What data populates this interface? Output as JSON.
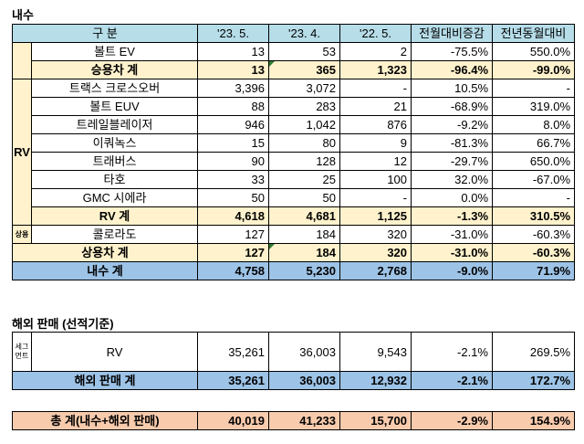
{
  "domestic": {
    "title": "내수",
    "headers": [
      "구  분",
      "'23. 5.",
      "'23. 4.",
      "'22. 5.",
      "전월대비증감",
      "전년동월대비"
    ],
    "bolt_ev": {
      "label": "볼트 EV",
      "v": [
        "13",
        "53",
        "2",
        "-75.5%",
        "550.0%"
      ]
    },
    "passenger_total": {
      "label": "승용차 계",
      "v": [
        "13",
        "365",
        "1,323",
        "-96.4%",
        "-99.0%"
      ]
    },
    "rv_group_label": "RV",
    "rv_rows": [
      {
        "label": "트랙스 크로스오버",
        "v": [
          "3,396",
          "3,072",
          "-",
          "10.5%",
          "-"
        ]
      },
      {
        "label": "볼트 EUV",
        "v": [
          "88",
          "283",
          "21",
          "-68.9%",
          "319.0%"
        ]
      },
      {
        "label": "트레일블레이저",
        "v": [
          "946",
          "1,042",
          "876",
          "-9.2%",
          "8.0%"
        ]
      },
      {
        "label": "이쿼녹스",
        "v": [
          "15",
          "80",
          "9",
          "-81.3%",
          "66.7%"
        ]
      },
      {
        "label": "트래버스",
        "v": [
          "90",
          "128",
          "12",
          "-29.7%",
          "650.0%"
        ]
      },
      {
        "label": "타호",
        "v": [
          "33",
          "25",
          "100",
          "32.0%",
          "-67.0%"
        ]
      },
      {
        "label": "GMC 시에라",
        "v": [
          "50",
          "50",
          "-",
          "0.0%",
          "-"
        ]
      }
    ],
    "rv_total": {
      "label": "RV 계",
      "v": [
        "4,618",
        "4,681",
        "1,125",
        "-1.3%",
        "310.5%"
      ]
    },
    "commercial_group_label": "상용",
    "colorado": {
      "label": "콜로라도",
      "v": [
        "127",
        "184",
        "320",
        "-31.0%",
        "-60.3%"
      ]
    },
    "commercial_total": {
      "label": "상용차 계",
      "v": [
        "127",
        "184",
        "320",
        "-31.0%",
        "-60.3%"
      ]
    },
    "domestic_total": {
      "label": "내수 계",
      "v": [
        "4,758",
        "5,230",
        "2,768",
        "-9.0%",
        "71.9%"
      ]
    }
  },
  "overseas": {
    "title": "해외 판매 (선적기준)",
    "group_label": "세그먼트",
    "rv": {
      "label": "RV",
      "v": [
        "35,261",
        "36,003",
        "9,543",
        "-2.1%",
        "269.5%"
      ]
    },
    "total": {
      "label": "해외 판매 계",
      "v": [
        "35,261",
        "36,003",
        "12,932",
        "-2.1%",
        "172.7%"
      ]
    }
  },
  "grand_total": {
    "label": "총  계(내수+해외 판매)",
    "v": [
      "40,019",
      "41,233",
      "15,700",
      "-2.9%",
      "154.9%"
    ]
  },
  "colors": {
    "header": "#b6dde8",
    "subtotal": "#fff2cc",
    "total": "#9dc3e6",
    "grand_total": "#f8cbad"
  }
}
